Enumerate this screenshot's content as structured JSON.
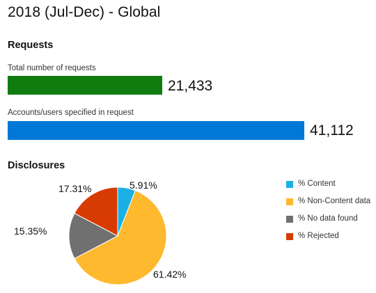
{
  "title": "2018 (Jul-Dec) - Global",
  "requests": {
    "heading": "Requests",
    "items": [
      {
        "label": "Total number of requests",
        "value": 21433,
        "value_text": "21,433",
        "color": "#107c10"
      },
      {
        "label": "Accounts/users specified in request",
        "value": 41112,
        "value_text": "41,112",
        "color": "#0078d7"
      }
    ]
  },
  "disclosures": {
    "heading": "Disclosures"
  },
  "chart_data": {
    "type": "pie",
    "slices": [
      {
        "name": "% Content",
        "value": 5.91,
        "label": "5.91%",
        "color": "#1ab0e6"
      },
      {
        "name": "% Non-Content data",
        "value": 61.42,
        "label": "61.42%",
        "color": "#ffb92e"
      },
      {
        "name": "% No data found",
        "value": 15.35,
        "label": "15.35%",
        "color": "#707070"
      },
      {
        "name": "% Rejected",
        "value": 17.31,
        "label": "17.31%",
        "color": "#d83b01"
      }
    ],
    "legend_position": "right"
  }
}
